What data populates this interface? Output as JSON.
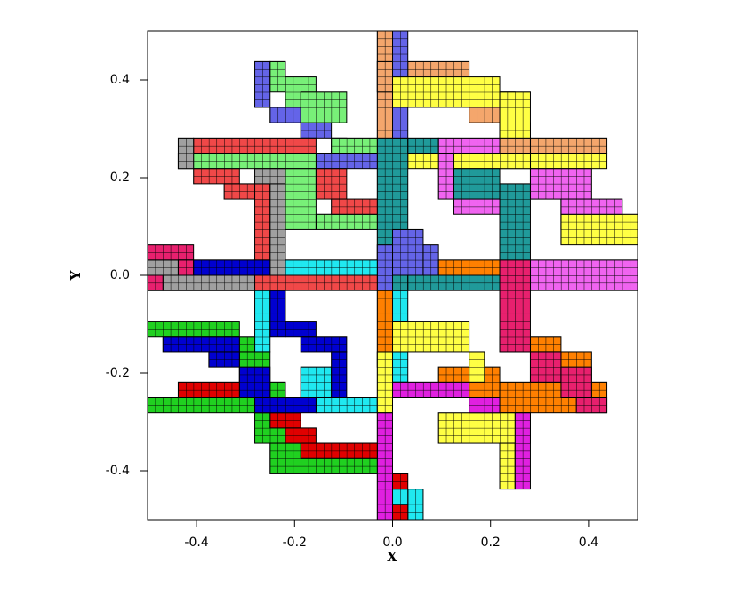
{
  "chart_data": {
    "type": "tiles",
    "xlabel": "X",
    "ylabel": "Y",
    "xlim": [
      -0.5,
      0.5
    ],
    "ylim": [
      -0.5,
      0.5
    ],
    "xticks": [
      -0.4,
      -0.2,
      {
        "value": 0,
        "label": "0.0"
      },
      0.2,
      0.4
    ],
    "yticks": [
      -0.4,
      -0.2,
      {
        "value": 0,
        "label": "0.0"
      },
      0.2,
      0.4
    ],
    "cell_size": 0.015625,
    "series": [
      {
        "color": "#f4a66c",
        "rects": [
          [
            -0.03125,
            0.25,
            0,
            0.5
          ],
          [
            -0.03125,
            0.375,
            0.15625,
            0.4375
          ],
          [
            0.15625,
            0.3125,
            0.25,
            0.375
          ],
          [
            0.21875,
            0.21875,
            0.28125,
            0.3125
          ],
          [
            0.28125,
            0.25,
            0.4375,
            0.28125
          ]
        ]
      },
      {
        "color": "#ffff44",
        "rects": [
          [
            0,
            0.34375,
            0.21875,
            0.40625
          ],
          [
            0.21875,
            0.28125,
            0.28125,
            0.375
          ],
          [
            -0.03125,
            0.21875,
            0.3125,
            0.25
          ],
          [
            0.28125,
            0.15625,
            0.34375,
            0.21875
          ],
          [
            0.34375,
            0.09375,
            0.40625,
            0.15625
          ],
          [
            0.34375,
            0.0625,
            0.5,
            0.125
          ],
          [
            0.28125,
            0.21875,
            0.4375,
            0.25
          ]
        ]
      },
      {
        "color": "#209a9a",
        "rects": [
          [
            -0.03125,
            -0.03125,
            0.03125,
            0.28125
          ],
          [
            0.03125,
            0.25,
            0.09375,
            0.28125
          ],
          [
            0.03125,
            -0.03125,
            0.21875,
            0
          ],
          [
            0.125,
            0.15625,
            0.21875,
            0.21875
          ],
          [
            0.21875,
            0,
            0.28125,
            0.1875
          ]
        ]
      },
      {
        "color": "#f064f0",
        "rects": [
          [
            0.09375,
            0.25,
            0.21875,
            0.28125
          ],
          [
            0.09375,
            0.15625,
            0.125,
            0.25
          ],
          [
            0.125,
            0.125,
            0.21875,
            0.15625
          ],
          [
            0.28125,
            0.15625,
            0.40625,
            0.21875
          ],
          [
            0.34375,
            0.125,
            0.46875,
            0.15625
          ],
          [
            0.28125,
            -0.03125,
            0.5,
            0.03125
          ]
        ]
      },
      {
        "color": "#6464e8",
        "rects": [
          [
            0,
            0.40625,
            0.03125,
            0.5
          ],
          [
            0,
            0.28125,
            0.03125,
            0.34375
          ],
          [
            -0.28125,
            0.34375,
            -0.25,
            0.4375
          ],
          [
            -0.25,
            0.3125,
            -0.1875,
            0.34375
          ],
          [
            -0.1875,
            0.28125,
            -0.125,
            0.3125
          ],
          [
            -0.125,
            0.21875,
            -0.09375,
            0.28125
          ],
          [
            -0.15625,
            0.21875,
            -0.03125,
            0.25
          ],
          [
            0,
            0,
            0.0625,
            0.09375
          ],
          [
            0.0625,
            0,
            0.09375,
            0.0625
          ],
          [
            -0.03125,
            -0.03125,
            0,
            0.0625
          ]
        ]
      },
      {
        "color": "#78f078",
        "rects": [
          [
            -0.25,
            0.375,
            -0.21875,
            0.4375
          ],
          [
            -0.21875,
            0.34375,
            -0.15625,
            0.40625
          ],
          [
            -0.1875,
            0.3125,
            -0.09375,
            0.375
          ],
          [
            -0.125,
            0.25,
            -0.03125,
            0.28125
          ],
          [
            -0.4375,
            0.21875,
            -0.15625,
            0.25
          ],
          [
            -0.21875,
            0.09375,
            -0.15625,
            0.21875
          ],
          [
            -0.15625,
            0.09375,
            -0.03125,
            0.125
          ]
        ]
      },
      {
        "color": "#f04848",
        "rects": [
          [
            -0.40625,
            0.25,
            -0.15625,
            0.28125
          ],
          [
            -0.40625,
            0.1875,
            -0.3125,
            0.21875
          ],
          [
            -0.34375,
            0.15625,
            -0.25,
            0.1875
          ],
          [
            -0.28125,
            -0.03125,
            -0.25,
            0.1875
          ],
          [
            -0.5,
            -0.03125,
            -0.03125,
            0
          ],
          [
            -0.15625,
            0.15625,
            -0.09375,
            0.21875
          ],
          [
            -0.125,
            0.125,
            -0.03125,
            0.15625
          ]
        ]
      },
      {
        "color": "#a0a0a0",
        "rects": [
          [
            -0.4375,
            0.21875,
            -0.40625,
            0.28125
          ],
          [
            -0.25,
            0,
            -0.21875,
            0.21875
          ],
          [
            -0.28125,
            0.1875,
            -0.21875,
            0.21875
          ],
          [
            -0.5,
            0,
            -0.4375,
            0.03125
          ],
          [
            -0.46875,
            -0.03125,
            -0.28125,
            0
          ]
        ]
      },
      {
        "color": "#20e8f0",
        "rects": [
          [
            -0.21875,
            0,
            -0.03125,
            0.03125
          ],
          [
            -0.28125,
            -0.15625,
            -0.25,
            -0.03125
          ],
          [
            -0.15625,
            -0.28125,
            -0.03125,
            -0.25
          ],
          [
            -0.1875,
            -0.25,
            -0.125,
            -0.1875
          ],
          [
            0,
            -0.09375,
            0.03125,
            -0.03125
          ],
          [
            0,
            -0.21875,
            0.03125,
            -0.15625
          ],
          [
            0.03125,
            -0.5,
            0.0625,
            -0.4375
          ],
          [
            0,
            -0.46875,
            0.03125,
            -0.4375
          ]
        ]
      },
      {
        "color": "#ff8000",
        "rects": [
          [
            -0.03125,
            -0.1875,
            0,
            -0.03125
          ],
          [
            0.09375,
            0,
            0.21875,
            0.03125
          ],
          [
            0.09375,
            -0.25,
            0.21875,
            -0.1875
          ],
          [
            0.21875,
            -0.15625,
            0.34375,
            -0.125
          ],
          [
            0.28125,
            -0.21875,
            0.40625,
            -0.15625
          ],
          [
            0.21875,
            -0.28125,
            0.4375,
            -0.21875
          ]
        ]
      },
      {
        "color": "#e8206e",
        "rects": [
          [
            -0.5,
            0.03125,
            -0.40625,
            0.0625
          ],
          [
            -0.4375,
            0,
            -0.40625,
            0.03125
          ],
          [
            -0.5,
            -0.03125,
            -0.46875,
            0
          ],
          [
            0.21875,
            -0.15625,
            0.28125,
            0.03125
          ],
          [
            0.28125,
            -0.21875,
            0.34375,
            -0.15625
          ],
          [
            0.34375,
            -0.25,
            0.40625,
            -0.1875
          ],
          [
            0.375,
            -0.28125,
            0.4375,
            -0.25
          ]
        ]
      },
      {
        "color": "#ffff44",
        "rects": [
          [
            0,
            -0.15625,
            0.15625,
            -0.09375
          ],
          [
            0.15625,
            -0.21875,
            0.1875,
            -0.15625
          ],
          [
            -0.03125,
            -0.28125,
            0,
            -0.15625
          ],
          [
            0.09375,
            -0.34375,
            0.28125,
            -0.28125
          ],
          [
            0.21875,
            -0.4375,
            0.25,
            -0.34375
          ]
        ]
      },
      {
        "color": "#e020e0",
        "rects": [
          [
            -0.03125,
            -0.5,
            0,
            -0.28125
          ],
          [
            0,
            -0.25,
            0.15625,
            -0.21875
          ],
          [
            0.15625,
            -0.28125,
            0.21875,
            -0.25
          ],
          [
            0.25,
            -0.4375,
            0.28125,
            -0.28125
          ]
        ]
      },
      {
        "color": "#20d020",
        "rects": [
          [
            -0.5,
            -0.125,
            -0.3125,
            -0.09375
          ],
          [
            -0.34375,
            -0.15625,
            -0.28125,
            -0.125
          ],
          [
            -0.3125,
            -0.21875,
            -0.25,
            -0.15625
          ],
          [
            -0.5,
            -0.28125,
            -0.28125,
            -0.25
          ],
          [
            -0.28125,
            -0.34375,
            -0.21875,
            -0.28125
          ],
          [
            -0.25,
            -0.40625,
            -0.03125,
            -0.34375
          ],
          [
            -0.25,
            -0.28125,
            -0.21875,
            -0.21875
          ]
        ]
      },
      {
        "color": "#e00000",
        "rects": [
          [
            -0.4375,
            -0.25,
            -0.28125,
            -0.21875
          ],
          [
            -0.25,
            -0.3125,
            -0.1875,
            -0.28125
          ],
          [
            -0.21875,
            -0.34375,
            -0.15625,
            -0.3125
          ],
          [
            -0.1875,
            -0.375,
            -0.03125,
            -0.34375
          ],
          [
            0,
            -0.4375,
            0.03125,
            -0.40625
          ],
          [
            0,
            -0.5,
            0.03125,
            -0.46875
          ]
        ]
      },
      {
        "color": "#0000d0",
        "rects": [
          [
            -0.40625,
            0,
            -0.25,
            0.03125
          ],
          [
            -0.25,
            -0.125,
            -0.21875,
            -0.03125
          ],
          [
            -0.46875,
            -0.15625,
            -0.3125,
            -0.125
          ],
          [
            -0.375,
            -0.1875,
            -0.3125,
            -0.15625
          ],
          [
            -0.3125,
            -0.25,
            -0.25,
            -0.1875
          ],
          [
            -0.21875,
            -0.125,
            -0.15625,
            -0.09375
          ],
          [
            -0.1875,
            -0.15625,
            -0.09375,
            -0.125
          ],
          [
            -0.125,
            -0.25,
            -0.09375,
            -0.15625
          ],
          [
            -0.28125,
            -0.28125,
            -0.15625,
            -0.25
          ]
        ]
      }
    ]
  }
}
